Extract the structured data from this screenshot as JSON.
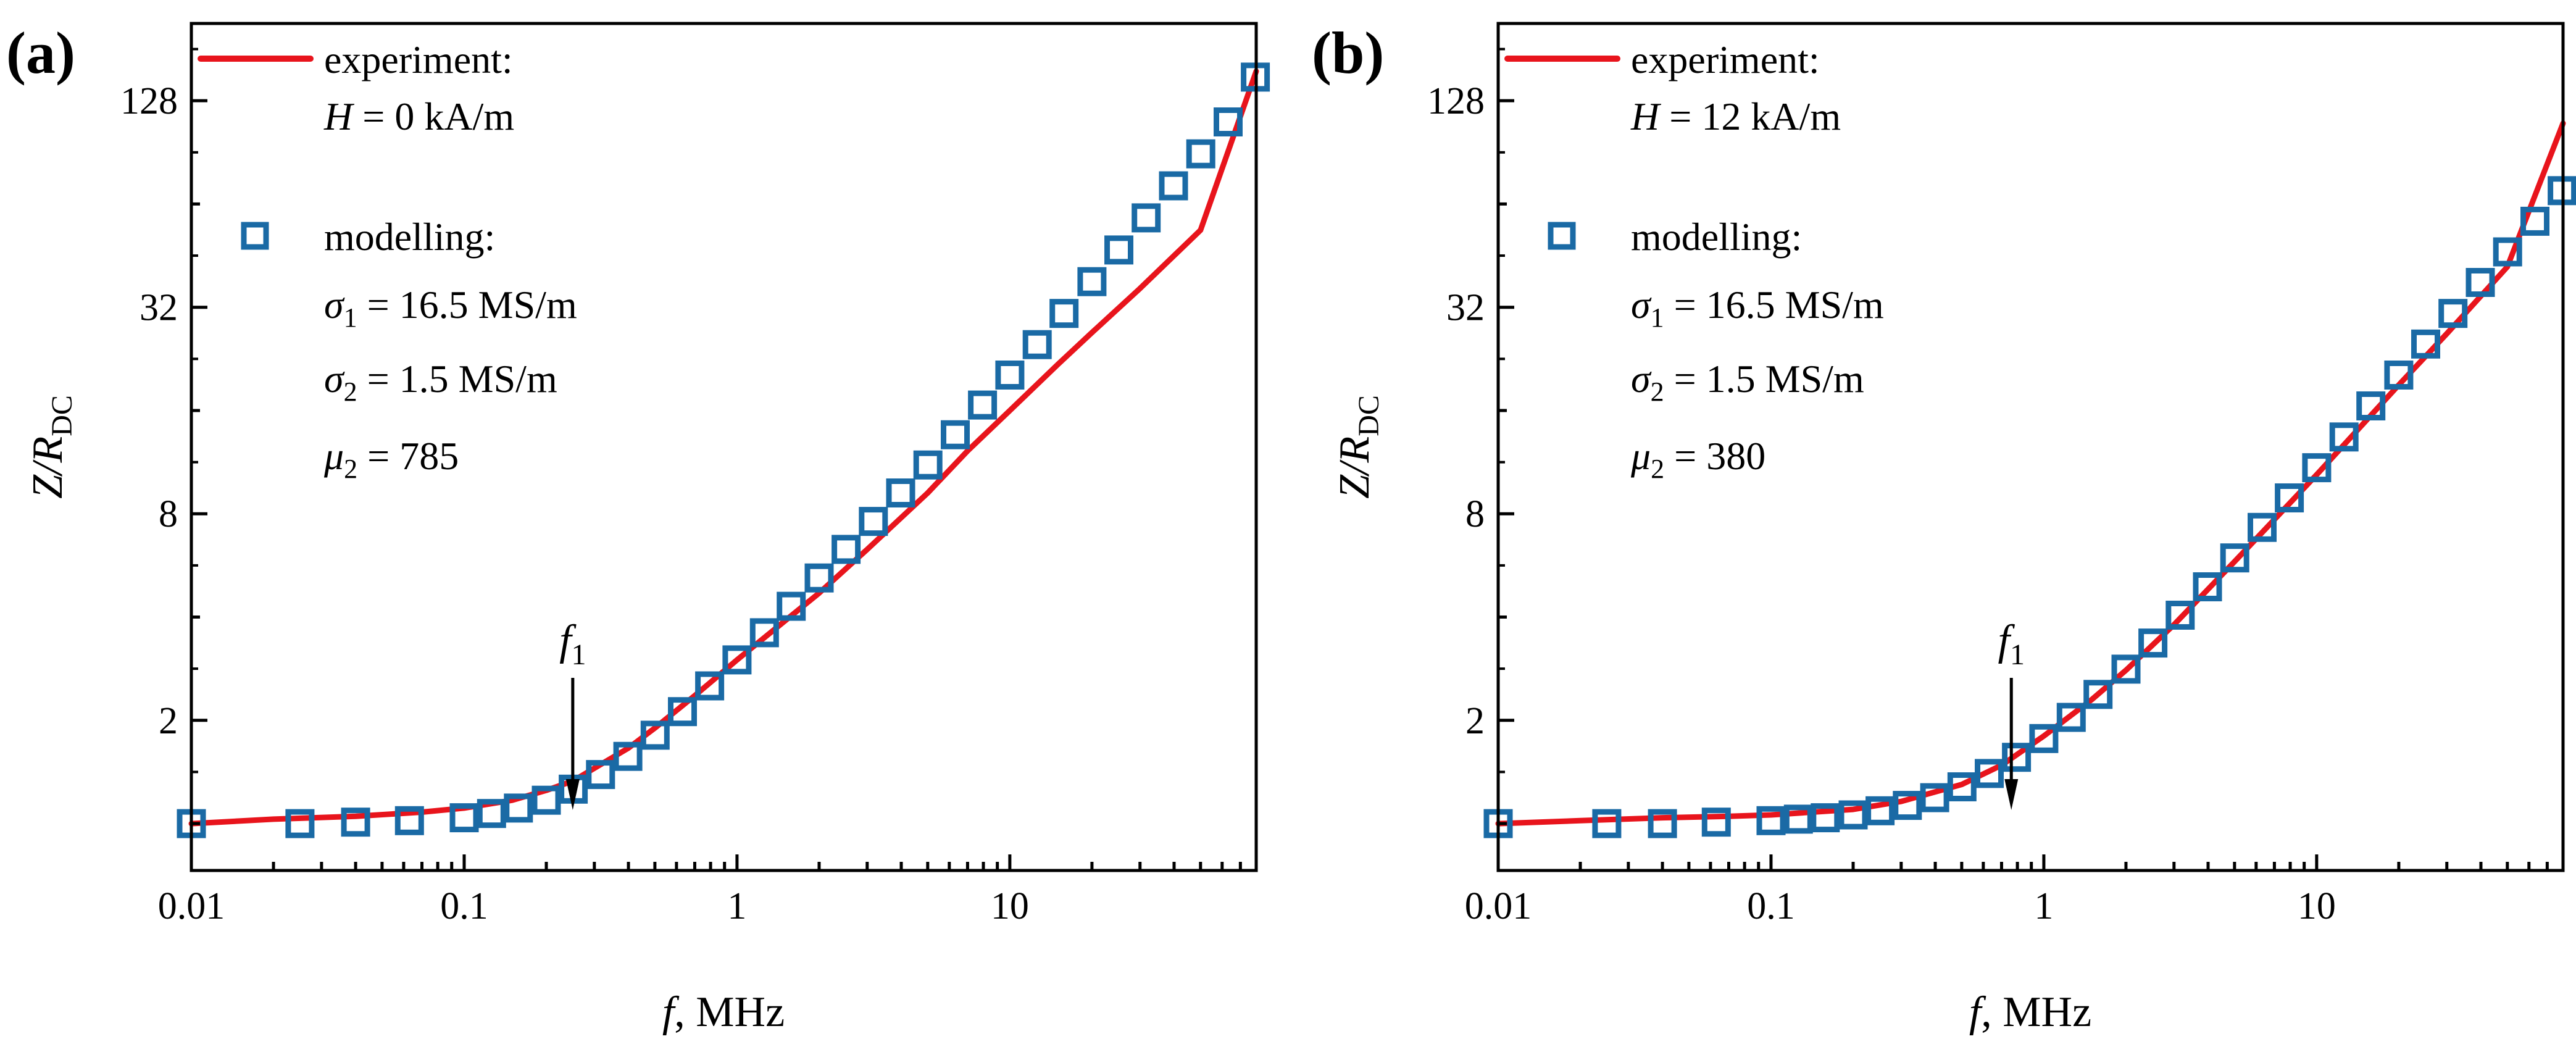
{
  "figure": {
    "panels": [
      "a",
      "b"
    ]
  },
  "colors": {
    "experiment": "#e8141c",
    "modelling": "#1a6aa5",
    "axis": "#000000"
  },
  "chart_data": [
    {
      "panel_label": "(a)",
      "type": "line",
      "xscale": "log",
      "yscale": "log2",
      "xlabel_var": "f",
      "xlabel_unit": ", MHz",
      "ylabel_main": "Z/R",
      "ylabel_sub": "DC",
      "xlim": [
        0.01,
        80
      ],
      "ylim": [
        0.73,
        215
      ],
      "xticks": [
        0.01,
        0.1,
        1,
        10
      ],
      "xtick_labels": [
        "0.01",
        "0.1",
        "1",
        "10"
      ],
      "yticks": [
        2,
        8,
        32,
        128
      ],
      "ytick_labels": [
        "2",
        "8",
        "32",
        "128"
      ],
      "legend": {
        "experiment_label": "experiment:",
        "experiment_param_var": "H",
        "experiment_param_value": " = 0 kA/m",
        "modelling_label": "modelling:",
        "sigma1_sym": "σ",
        "sigma1_sub": "1",
        "sigma1_value": " = 16.5 MS/m",
        "sigma2_sym": "σ",
        "sigma2_sub": "2",
        "sigma2_value": " = 1.5 MS/m",
        "mu2_sym": "μ",
        "mu2_sub": "2",
        "mu2_value": " = 785"
      },
      "annotation": {
        "text": "f",
        "sub": "1",
        "x": 0.25
      },
      "series": [
        {
          "name": "experiment",
          "style": "line",
          "x": [
            0.01,
            0.02,
            0.04,
            0.07,
            0.1,
            0.15,
            0.2,
            0.25,
            0.3,
            0.4,
            0.5,
            0.7,
            1,
            1.5,
            2,
            3,
            5,
            7,
            10,
            15,
            20,
            30,
            50,
            80
          ],
          "y": [
            1.0,
            1.03,
            1.05,
            1.08,
            1.11,
            1.17,
            1.25,
            1.33,
            1.45,
            1.66,
            1.9,
            2.36,
            3.0,
            3.9,
            4.7,
            6.3,
            9.2,
            12.2,
            16.0,
            21.8,
            27.0,
            36.3,
            53.7,
            156.0
          ]
        },
        {
          "name": "modelling",
          "style": "square-marker",
          "x": [
            0.01,
            0.025,
            0.04,
            0.063,
            0.1,
            0.126,
            0.158,
            0.2,
            0.251,
            0.316,
            0.398,
            0.501,
            0.631,
            0.794,
            1.0,
            1.26,
            1.58,
            2.0,
            2.51,
            3.16,
            3.98,
            5.01,
            6.31,
            7.94,
            10.0,
            12.6,
            15.8,
            20.0,
            25.1,
            31.6,
            39.8,
            50.1,
            63.1,
            79.4
          ],
          "y": [
            1.0,
            1.0,
            1.01,
            1.02,
            1.04,
            1.07,
            1.11,
            1.17,
            1.26,
            1.39,
            1.57,
            1.81,
            2.12,
            2.52,
            3.0,
            3.6,
            4.3,
            5.2,
            6.3,
            7.6,
            9.2,
            11.1,
            13.6,
            16.6,
            20.3,
            24.9,
            30.7,
            38.0,
            47.0,
            58.3,
            72.3,
            89.6,
            111.0,
            150.0
          ]
        }
      ]
    },
    {
      "panel_label": "(b)",
      "type": "line",
      "xscale": "log",
      "yscale": "log2",
      "xlabel_var": "f",
      "xlabel_unit": ", MHz",
      "ylabel_main": "Z/R",
      "ylabel_sub": "DC",
      "xlim": [
        0.01,
        80
      ],
      "ylim": [
        0.73,
        215
      ],
      "xticks": [
        0.01,
        0.1,
        1,
        10
      ],
      "xtick_labels": [
        "0.01",
        "0.1",
        "1",
        "10"
      ],
      "yticks": [
        2,
        8,
        32,
        128
      ],
      "ytick_labels": [
        "2",
        "8",
        "32",
        "128"
      ],
      "legend": {
        "experiment_label": "experiment:",
        "experiment_param_var": "H",
        "experiment_param_value": " = 12 kA/m",
        "modelling_label": "modelling:",
        "sigma1_sym": "σ",
        "sigma1_sub": "1",
        "sigma1_value": " = 16.5 MS/m",
        "sigma2_sym": "σ",
        "sigma2_sub": "2",
        "sigma2_value": " = 1.5 MS/m",
        "mu2_sym": "μ",
        "mu2_sub": "2",
        "mu2_value": " = 380"
      },
      "annotation": {
        "text": "f",
        "sub": "1",
        "x": 0.76
      },
      "series": [
        {
          "name": "experiment",
          "style": "line",
          "x": [
            0.01,
            0.02,
            0.04,
            0.07,
            0.1,
            0.2,
            0.3,
            0.5,
            0.7,
            1,
            1.5,
            2,
            3,
            5,
            7,
            10,
            15,
            20,
            30,
            50,
            80
          ],
          "y": [
            1.0,
            1.02,
            1.04,
            1.05,
            1.06,
            1.1,
            1.16,
            1.3,
            1.48,
            1.8,
            2.3,
            2.8,
            3.8,
            5.8,
            7.7,
            10.4,
            14.8,
            19.0,
            26.8,
            42.0,
            110.0
          ]
        },
        {
          "name": "modelling",
          "style": "square-marker",
          "x": [
            0.01,
            0.025,
            0.04,
            0.063,
            0.1,
            0.126,
            0.158,
            0.2,
            0.251,
            0.316,
            0.398,
            0.501,
            0.631,
            0.794,
            1.0,
            1.26,
            1.58,
            2.0,
            2.51,
            3.16,
            3.98,
            5.01,
            6.31,
            7.94,
            10.0,
            12.6,
            15.8,
            20.0,
            25.1,
            31.6,
            39.8,
            50.1,
            63.1,
            79.4
          ],
          "y": [
            1.0,
            1.0,
            1.0,
            1.01,
            1.02,
            1.03,
            1.04,
            1.06,
            1.09,
            1.13,
            1.19,
            1.28,
            1.4,
            1.56,
            1.77,
            2.04,
            2.38,
            2.82,
            3.36,
            4.05,
            4.9,
            5.95,
            7.3,
            8.9,
            10.9,
            13.4,
            16.5,
            20.3,
            25.0,
            30.7,
            37.8,
            46.4,
            57.0,
            70.0
          ]
        }
      ]
    }
  ]
}
